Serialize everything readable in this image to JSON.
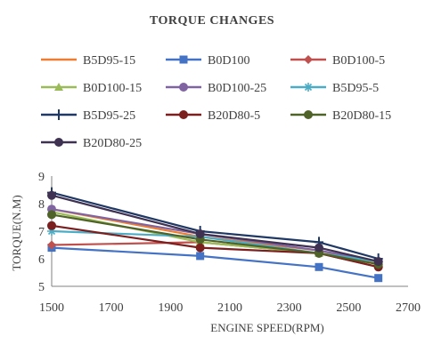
{
  "chart_data": {
    "type": "line",
    "title": "TORQUE CHANGES",
    "xlabel": "ENGINE SPEED(RPM)",
    "ylabel": "TORQUE(N.M)",
    "xlim": [
      1500,
      2700
    ],
    "ylim": [
      5,
      9
    ],
    "xticks": [
      1500,
      1700,
      1900,
      2100,
      2300,
      2500,
      2700
    ],
    "yticks": [
      5,
      6,
      7,
      8,
      9
    ],
    "grid": false,
    "legend_position": "top",
    "x": [
      1500,
      2000,
      2400,
      2600
    ],
    "series": [
      {
        "name": "B5D95-15",
        "color": "#ED7D31",
        "marker": "none",
        "values": [
          7.8,
          6.8,
          6.3,
          5.8
        ]
      },
      {
        "name": "B0D100",
        "color": "#4472C4",
        "marker": "square",
        "values": [
          6.4,
          6.1,
          5.7,
          5.3
        ]
      },
      {
        "name": "B0D100-5",
        "color": "#C0504D",
        "marker": "diamond",
        "values": [
          6.5,
          6.6,
          6.2,
          5.7
        ]
      },
      {
        "name": "B0D100-15",
        "color": "#9BBB59",
        "marker": "triangle",
        "values": [
          7.7,
          6.6,
          6.2,
          5.8
        ]
      },
      {
        "name": "B0D100-25",
        "color": "#8064A2",
        "marker": "circle",
        "values": [
          7.8,
          6.9,
          6.3,
          5.9
        ]
      },
      {
        "name": "B5D95-5",
        "color": "#4BACC6",
        "marker": "star",
        "values": [
          7.0,
          6.8,
          6.2,
          5.9
        ]
      },
      {
        "name": "B5D95-25",
        "color": "#1F3864",
        "marker": "plus",
        "values": [
          8.4,
          7.0,
          6.6,
          6.0
        ]
      },
      {
        "name": "B20D80-5",
        "color": "#7B1F1F",
        "marker": "circle",
        "values": [
          7.2,
          6.4,
          6.2,
          5.7
        ]
      },
      {
        "name": "B20D80-15",
        "color": "#4F6228",
        "marker": "circle",
        "values": [
          7.6,
          6.7,
          6.2,
          5.8
        ]
      },
      {
        "name": "B20D80-25",
        "color": "#3F3151",
        "marker": "circle",
        "values": [
          8.3,
          6.9,
          6.4,
          5.9
        ]
      }
    ]
  }
}
